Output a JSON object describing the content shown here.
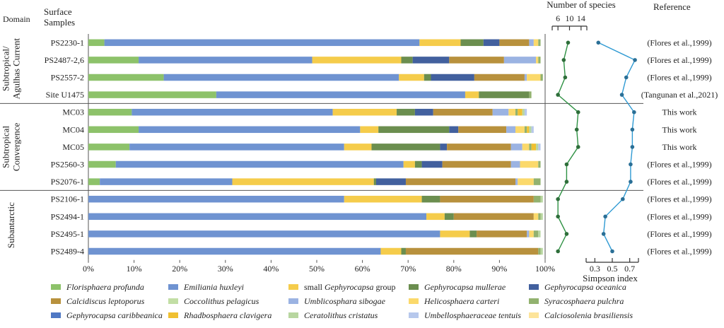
{
  "chart_data": [
    {
      "type": "stacked-bar-horizontal",
      "xlabel_ticks": [
        "0%",
        "10%",
        "20%",
        "30%",
        "40%",
        "50%",
        "60%",
        "70%",
        "80%",
        "90%",
        "100%"
      ],
      "xlim": [
        0,
        100
      ],
      "header_domain": "Domain",
      "header_samples": "Surface Samples",
      "groups": [
        {
          "name": "Subtropical/ Agulhas Current",
          "lines": [
            "Subtropical/",
            "Agulhas Current"
          ],
          "samples": [
            "PS2230-1",
            "PS2487-2,6",
            "PS2557-2",
            "Site U1475"
          ]
        },
        {
          "name": "Subtropical Convergence",
          "lines": [
            "Subtropical",
            "Convergence"
          ],
          "samples": [
            "MC03",
            "MC04",
            "MC05",
            "PS2560-3",
            "PS2076-1"
          ]
        },
        {
          "name": "Subantarctic",
          "lines": [
            "Subantarctic"
          ],
          "samples": [
            "PS2106-1",
            "PS2494-1",
            "PS2495-1",
            "PS2489-4"
          ]
        }
      ],
      "series": [
        {
          "name": "Florisphaera profunda",
          "color": "#8dc26a",
          "values": [
            3.5,
            11,
            16.5,
            28,
            9.5,
            11,
            9,
            6,
            2.5,
            0,
            0,
            0,
            0
          ]
        },
        {
          "name": "Emiliania huxleyi",
          "color": "#6f93d1",
          "values": [
            69,
            38,
            51.5,
            54.5,
            44,
            48.5,
            47,
            63,
            29,
            56,
            74,
            77,
            64
          ]
        },
        {
          "name": "small Gephyrocapsa group",
          "color": "#f5cc4b",
          "values": [
            9,
            19.5,
            5.5,
            3,
            14,
            4,
            6,
            2.5,
            31,
            17,
            4,
            6.5,
            4.5
          ]
        },
        {
          "name": "Gephyrocapsa mullerae",
          "color": "#6b8e4f",
          "values": [
            5,
            2.5,
            1.5,
            11,
            4,
            15.5,
            15,
            1.5,
            0.5,
            4,
            2,
            1.5,
            1
          ]
        },
        {
          "name": "Gephyrocapsa oceanica",
          "color": "#42609e",
          "values": [
            3.5,
            8,
            9.5,
            0,
            4,
            2,
            1.5,
            4.5,
            6.5,
            0,
            0,
            0,
            0
          ]
        },
        {
          "name": "Calcidiscus leptoporus",
          "color": "#b8913d",
          "values": [
            6.5,
            12,
            11,
            0,
            13,
            10.5,
            14,
            15,
            24,
            20.5,
            17.5,
            11,
            29
          ]
        },
        {
          "name": "Coccolithus pelagicus",
          "color": "#c2dea5",
          "values": [
            0,
            0,
            0,
            0,
            0,
            0,
            0,
            0,
            0,
            0,
            0,
            0,
            0
          ]
        },
        {
          "name": "Umblicosphara sibogae",
          "color": "#9bb3e2",
          "values": [
            1,
            7,
            0.5,
            0,
            3.5,
            2,
            2.5,
            2,
            0.5,
            0,
            0,
            0.5,
            0
          ]
        },
        {
          "name": "Helicosphaera carteri",
          "color": "#fbd96b",
          "values": [
            1,
            0.5,
            3,
            0,
            1.5,
            2,
            1.5,
            4,
            3.5,
            0,
            1,
            1,
            0
          ]
        },
        {
          "name": "Syracosphaera pulchra",
          "color": "#92b26f",
          "values": [
            0.5,
            0.5,
            0.5,
            0.5,
            0.5,
            0.5,
            0.5,
            0.5,
            1.5,
            1.5,
            0.5,
            1,
            0.5
          ]
        },
        {
          "name": "Gephyrocapsa caribbeanica",
          "color": "#4f78c4",
          "values": [
            0,
            0,
            0,
            0,
            0,
            0,
            0,
            0,
            0,
            0,
            0,
            0,
            0
          ]
        },
        {
          "name": "Rhadbosphaera clavigera",
          "color": "#f0c030",
          "values": [
            0,
            0,
            0,
            0,
            1,
            0.5,
            1,
            0,
            0,
            0,
            0,
            0,
            0
          ]
        },
        {
          "name": "Ceratolithus cristatus",
          "color": "#b8d6a0",
          "values": [
            0,
            0,
            0,
            0,
            0.5,
            0.5,
            0.5,
            0,
            0,
            0.5,
            0.5,
            0.5,
            0.5
          ]
        },
        {
          "name": "Umbellosphaeraceae tentuis",
          "color": "#b7c8ec",
          "values": [
            0,
            0,
            0,
            0,
            0.5,
            0.5,
            0.5,
            0,
            0,
            0,
            0,
            0,
            0
          ]
        },
        {
          "name": "Calciosolenia brasiliensis",
          "color": "#fde49a",
          "values": [
            0,
            0,
            0,
            0,
            0,
            0,
            0,
            0,
            0,
            0,
            0,
            0,
            0
          ]
        }
      ]
    },
    {
      "type": "line",
      "title": "Number of species",
      "ticks": [
        "6",
        "10",
        "14"
      ],
      "xlim": [
        4,
        16
      ],
      "color": "#2e9143",
      "values": [
        9.5,
        8,
        8.5,
        6,
        13,
        12.5,
        13,
        9,
        9,
        6,
        6,
        9,
        6
      ]
    },
    {
      "type": "line",
      "xlabel": "Simpson index",
      "ticks": [
        "0.3",
        "0.5",
        "0.7"
      ],
      "xlim": [
        0.2,
        0.8
      ],
      "color": "#2f9ad3",
      "values": [
        0.34,
        0.76,
        0.66,
        0.61,
        0.75,
        0.73,
        0.73,
        0.71,
        0.71,
        0.62,
        0.42,
        0.4,
        0.5
      ]
    }
  ],
  "references": {
    "header": "Reference",
    "values": [
      "(Flores et al.,1999)",
      "(Flores et al.,1999)",
      "(Flores et al.,1999)",
      "(Tangunan et al.,2021)",
      "This work",
      "This work",
      "This work",
      "(Flores et al.,1999)",
      "(Flores et al.,1999)",
      "(Flores et al.,1999)",
      "(Flores et al.,1999)",
      "(Flores et al.,1999)",
      "(Flores et al.,1999)"
    ]
  },
  "legend": [
    [
      {
        "pre": "",
        "it": "Florisphaera profunda",
        "post": "",
        "color": "#8dc26a"
      },
      {
        "pre": "",
        "it": "Emiliania huxleyi",
        "post": "",
        "color": "#6f93d1"
      },
      {
        "pre": "small ",
        "it": "Gephyrocapsa",
        "post": " group",
        "color": "#f5cc4b"
      },
      {
        "pre": "",
        "it": "Gephyrocapsa mullerae",
        "post": "",
        "color": "#6b8e4f"
      },
      {
        "pre": "",
        "it": "Gephyrocapsa oceanica",
        "post": "",
        "color": "#42609e"
      }
    ],
    [
      {
        "pre": "",
        "it": "Calcidiscus leptoporus",
        "post": "",
        "color": "#b8913d"
      },
      {
        "pre": "",
        "it": "Coccolithus pelagicus",
        "post": "",
        "color": "#c2dea5"
      },
      {
        "pre": "",
        "it": "Umblicosphara sibogae",
        "post": "",
        "color": "#9bb3e2"
      },
      {
        "pre": "",
        "it": "Helicosphaera carteri",
        "post": "",
        "color": "#fbd96b"
      },
      {
        "pre": "",
        "it": "Syracosphaera pulchra",
        "post": "",
        "color": "#92b26f"
      }
    ],
    [
      {
        "pre": "",
        "it": "Gephyrocapsa caribbeanica",
        "post": "",
        "color": "#4f78c4"
      },
      {
        "pre": "",
        "it": "Rhadbosphaera clavigera",
        "post": "",
        "color": "#f0c030"
      },
      {
        "pre": "",
        "it": "Ceratolithus cristatus",
        "post": "",
        "color": "#b8d6a0"
      },
      {
        "pre": "",
        "it": "Umbellosphaeraceae tentuis",
        "post": "",
        "color": "#b7c8ec"
      },
      {
        "pre": "",
        "it": "Calciosolenia brasiliensis",
        "post": "",
        "color": "#fde49a"
      }
    ]
  ]
}
